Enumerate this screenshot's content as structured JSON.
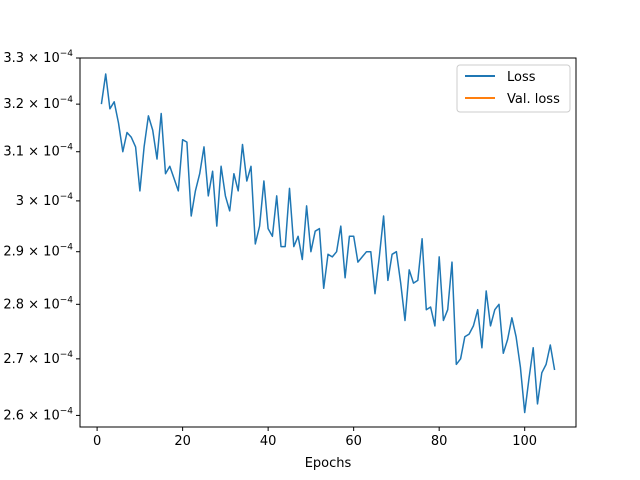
{
  "chart_data": {
    "type": "line",
    "xlabel": "Epochs",
    "ylabel": "",
    "yscale": "log",
    "xlim": [
      -4,
      112
    ],
    "ylim": [
      0.000258,
      0.00033
    ],
    "x_ticks": [
      0,
      20,
      40,
      60,
      80,
      100
    ],
    "y_ticks": [
      {
        "value": 0.00026,
        "mantissa": "2.6",
        "times": "×",
        "base": "10",
        "exp": "−4"
      },
      {
        "value": 0.00027,
        "mantissa": "2.7",
        "times": "×",
        "base": "10",
        "exp": "−4"
      },
      {
        "value": 0.00028,
        "mantissa": "2.8",
        "times": "×",
        "base": "10",
        "exp": "−4"
      },
      {
        "value": 0.00029,
        "mantissa": "2.9",
        "times": "×",
        "base": "10",
        "exp": "−4"
      },
      {
        "value": 0.0003,
        "mantissa": "3",
        "times": "×",
        "base": "10",
        "exp": "−4"
      },
      {
        "value": 0.00031,
        "mantissa": "3.1",
        "times": "×",
        "base": "10",
        "exp": "−4"
      },
      {
        "value": 0.00032,
        "mantissa": "3.2",
        "times": "×",
        "base": "10",
        "exp": "−4"
      },
      {
        "value": 0.00033,
        "mantissa": "3.3",
        "times": "×",
        "base": "10",
        "exp": "−4"
      }
    ],
    "legend": {
      "placement": "top-right"
    },
    "series": [
      {
        "name": "Loss",
        "color": "#1f77b4",
        "x": [
          1,
          2,
          3,
          4,
          5,
          6,
          7,
          8,
          9,
          10,
          11,
          12,
          13,
          14,
          15,
          16,
          17,
          18,
          19,
          20,
          21,
          22,
          23,
          24,
          25,
          26,
          27,
          28,
          29,
          30,
          31,
          32,
          33,
          34,
          35,
          36,
          37,
          38,
          39,
          40,
          41,
          42,
          43,
          44,
          45,
          46,
          47,
          48,
          49,
          50,
          51,
          52,
          53,
          54,
          55,
          56,
          57,
          58,
          59,
          60,
          61,
          62,
          63,
          64,
          65,
          66,
          67,
          68,
          69,
          70,
          71,
          72,
          73,
          74,
          75,
          76,
          77,
          78,
          79,
          80,
          81,
          82,
          83,
          84,
          85,
          86,
          87,
          88,
          89,
          90,
          91,
          92,
          93,
          94,
          95,
          96,
          97,
          98,
          99,
          100,
          101,
          102,
          103,
          104,
          105,
          106,
          107
        ],
        "values": [
          0.00032,
          0.0003265,
          0.000319,
          0.0003205,
          0.000316,
          0.00031,
          0.000314,
          0.000313,
          0.000311,
          0.000302,
          0.000311,
          0.0003175,
          0.0003145,
          0.0003085,
          0.000318,
          0.0003055,
          0.000307,
          0.0003045,
          0.000302,
          0.0003125,
          0.000312,
          0.000297,
          0.000302,
          0.0003055,
          0.000311,
          0.000301,
          0.000306,
          0.000295,
          0.000307,
          0.000301,
          0.000298,
          0.0003055,
          0.000302,
          0.0003115,
          0.000304,
          0.000307,
          0.0002915,
          0.000295,
          0.000304,
          0.0002945,
          0.000293,
          0.000301,
          0.000291,
          0.000291,
          0.0003025,
          0.000291,
          0.000293,
          0.0002885,
          0.000299,
          0.00029,
          0.000294,
          0.0002945,
          0.000283,
          0.0002895,
          0.000289,
          0.00029,
          0.000295,
          0.000285,
          0.000293,
          0.000293,
          0.000288,
          0.000289,
          0.00029,
          0.00029,
          0.000282,
          0.000289,
          0.000297,
          0.0002845,
          0.0002895,
          0.00029,
          0.000284,
          0.000277,
          0.0002865,
          0.000284,
          0.0002845,
          0.0002925,
          0.000279,
          0.0002795,
          0.000276,
          0.000289,
          0.000277,
          0.000279,
          0.000288,
          0.000269,
          0.00027,
          0.000274,
          0.0002745,
          0.000276,
          0.000279,
          0.000272,
          0.0002825,
          0.000276,
          0.000279,
          0.00028,
          0.000271,
          0.0002735,
          0.0002775,
          0.000274,
          0.0002685,
          0.0002605,
          0.0002665,
          0.000272,
          0.000262,
          0.0002675,
          0.000269,
          0.0002725,
          0.000268
        ]
      },
      {
        "name": "Val. loss",
        "color": "#ff7f0e",
        "x": [],
        "values": []
      }
    ]
  }
}
